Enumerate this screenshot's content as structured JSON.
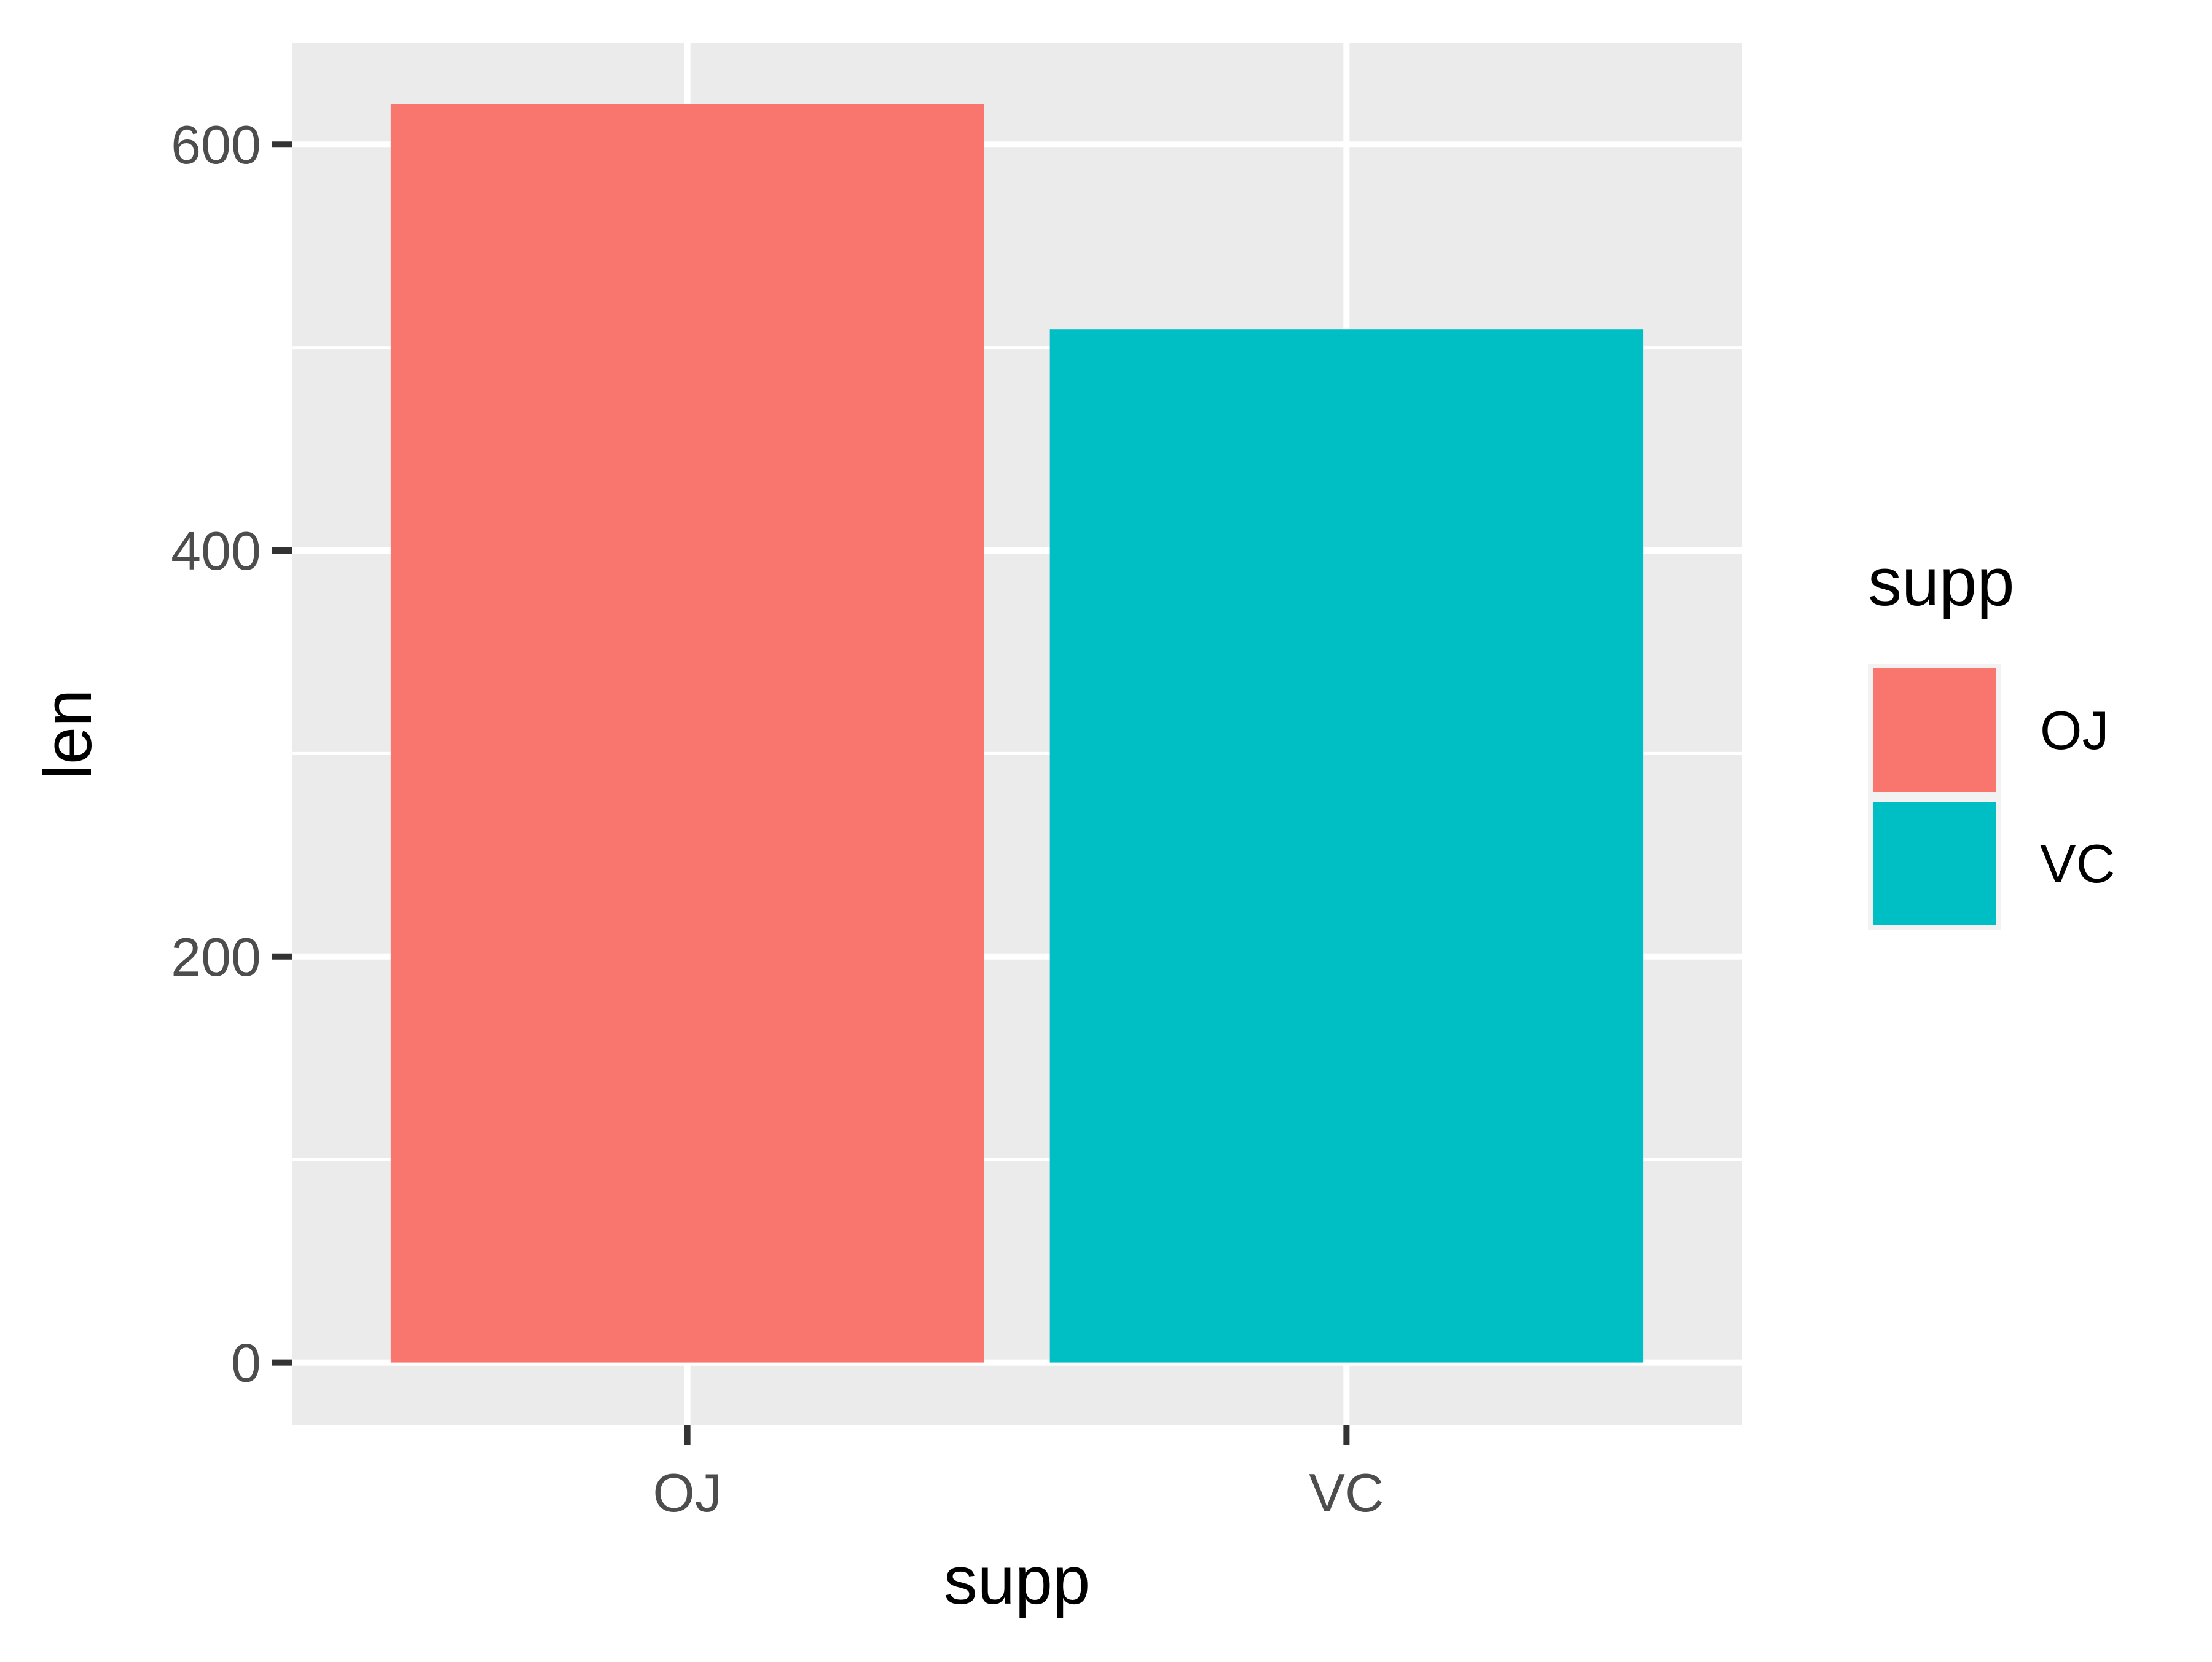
{
  "chart_data": {
    "type": "bar",
    "categories": [
      "OJ",
      "VC"
    ],
    "values": [
      619.9,
      508.9
    ],
    "colors": [
      "#F8766D",
      "#00BFC4"
    ],
    "xlabel": "supp",
    "ylabel": "len",
    "ylim": [
      -31,
      650
    ],
    "yticks": [
      0,
      200,
      400,
      600
    ],
    "ytick_labels": [
      "0",
      "200",
      "400",
      "600"
    ],
    "grid": true,
    "panel_background": "#EBEBEB",
    "legend": {
      "title": "supp",
      "position": "right",
      "entries": [
        {
          "label": "OJ",
          "color": "#F8766D"
        },
        {
          "label": "VC",
          "color": "#00BFC4"
        }
      ]
    }
  }
}
